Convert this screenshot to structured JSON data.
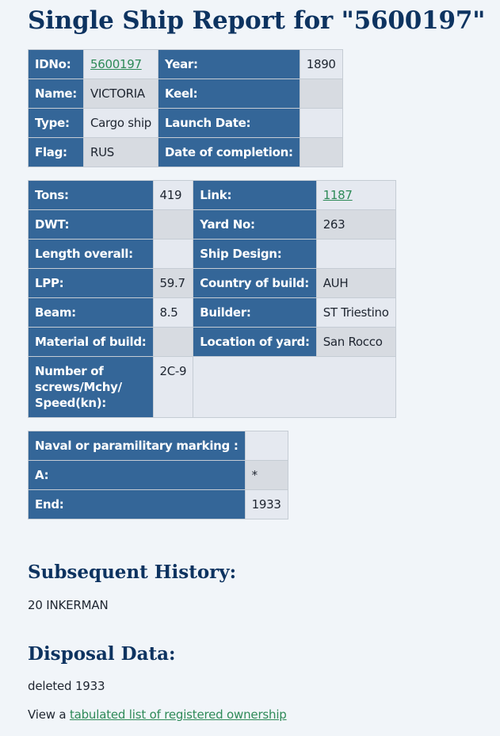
{
  "page_title": "Single Ship Report for \"5600197\"",
  "ident": {
    "idno_label": "IDNo:",
    "idno_value": "5600197",
    "year_label": "Year:",
    "year_value": "1890",
    "name_label": "Name:",
    "name_value": "VICTORIA",
    "keel_label": "Keel:",
    "keel_value": "",
    "type_label": "Type:",
    "type_value": "Cargo ship",
    "launch_label": "Launch Date:",
    "launch_value": "",
    "flag_label": "Flag:",
    "flag_value": "RUS",
    "completion_label": "Date of completion:",
    "completion_value": ""
  },
  "specs": {
    "tons_label": "Tons:",
    "tons_value": "419",
    "link_label": "Link:",
    "link_value": "1187",
    "dwt_label": "DWT:",
    "dwt_value": "",
    "yard_no_label": "Yard No:",
    "yard_no_value": "263",
    "length_label": "Length overall:",
    "length_value": "",
    "design_label": "Ship Design:",
    "design_value": "",
    "lpp_label": "LPP:",
    "lpp_value": "59.7",
    "country_label": "Country of build:",
    "country_value": "AUH",
    "beam_label": "Beam:",
    "beam_value": "8.5",
    "builder_label": "Builder:",
    "builder_value": "ST Triestino",
    "material_label": "Material of build:",
    "material_value": "",
    "location_label": "Location of yard:",
    "location_value": "San Rocco",
    "screws_label_line1": "Number of",
    "screws_label_line2": "screws/Mchy/",
    "screws_label_line3": "Speed(kn):",
    "screws_value": "2C-9"
  },
  "naval": {
    "marking_label": "Naval or paramilitary marking :",
    "marking_value": "",
    "a_label": "A:",
    "a_value": "*",
    "end_label": "End:",
    "end_value": "1933"
  },
  "history": {
    "heading": "Subsequent History:",
    "text": "20 INKERMAN"
  },
  "disposal": {
    "heading": "Disposal Data:",
    "text": "deleted 1933",
    "view_prefix": "View a ",
    "ownership_link": "tabulated list of registered ownership"
  }
}
